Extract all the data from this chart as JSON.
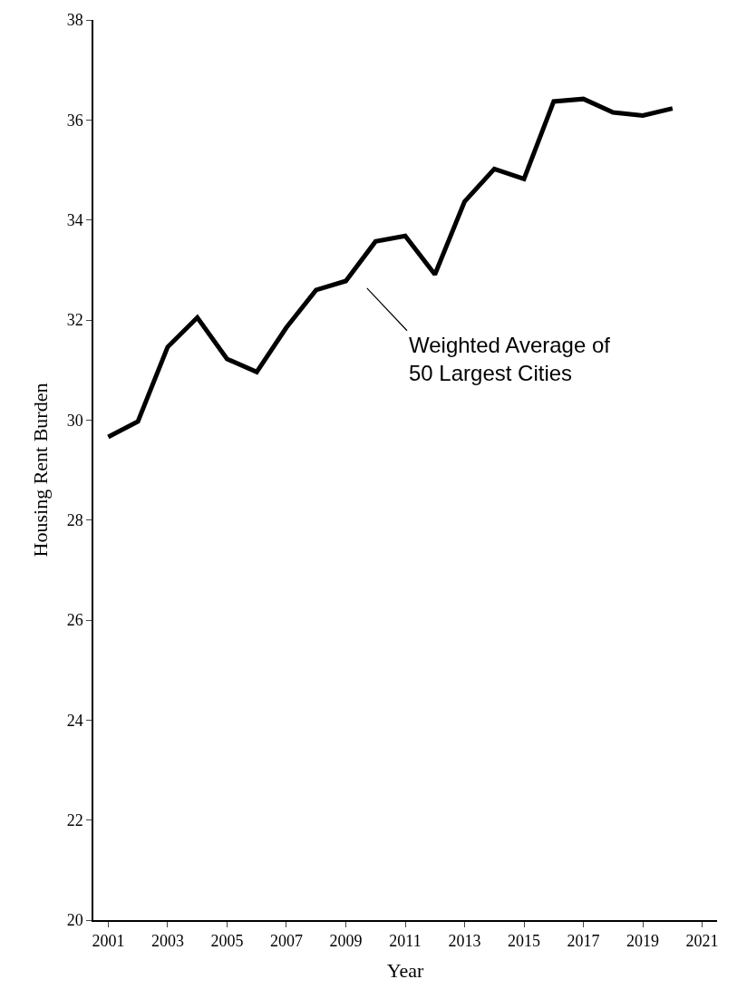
{
  "chart_data": {
    "type": "line",
    "xlabel": "Year",
    "ylabel": "Housing Rent Burden",
    "categories": [
      "2001",
      null,
      "2003",
      null,
      "2005",
      null,
      "2007",
      null,
      "2009",
      null,
      "2011",
      null,
      "2013",
      null,
      "2015",
      null,
      "2017",
      null,
      "2019",
      null,
      "2021"
    ],
    "series": [
      {
        "color": "#000000",
        "values": [
          29.66,
          29.97,
          31.46,
          32.05,
          31.22,
          30.96,
          31.85,
          32.6,
          32.78,
          33.57,
          33.68,
          32.91,
          34.37,
          35.02,
          34.82,
          36.37,
          36.42,
          36.15,
          36.09,
          36.23,
          null
        ]
      }
    ],
    "annotations": [
      "Weighted Average of\n50 Largest Cities"
    ],
    "ylim": [
      20,
      38
    ],
    "yticks": [
      20,
      22,
      24,
      26,
      28,
      30,
      32,
      34,
      36,
      38
    ],
    "legend": false,
    "marker": "none",
    "line_style": "solid"
  }
}
